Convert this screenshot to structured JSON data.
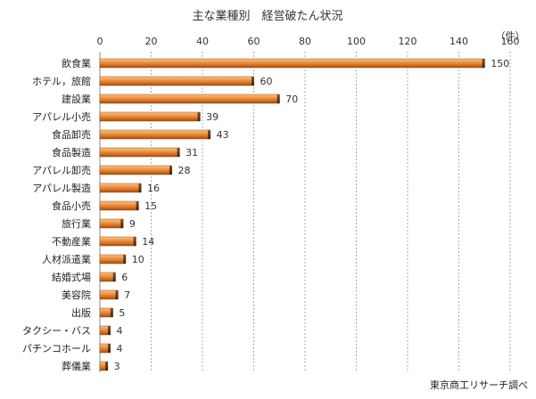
{
  "chart_data": {
    "type": "bar",
    "orientation": "horizontal",
    "title": "主な業種別　経営破たん状況",
    "unit_label": "（件）",
    "source": "東京商工リサーチ調べ",
    "xlim": [
      0,
      160
    ],
    "x_ticks": [
      0,
      20,
      40,
      60,
      80,
      100,
      120,
      140,
      160
    ],
    "grid": true,
    "bar_color": "#E07B2C",
    "categories": [
      "飲食業",
      "ホテル，旅館",
      "建設業",
      "アパレル小売",
      "食品卸売",
      "食品製造",
      "アパレル卸売",
      "アパレル製造",
      "食品小売",
      "旅行業",
      "不動産業",
      "人材派遣業",
      "結婚式場",
      "美容院",
      "出版",
      "タクシー・バス",
      "パチンコホール",
      "葬儀業"
    ],
    "values": [
      150,
      60,
      70,
      39,
      43,
      31,
      28,
      16,
      15,
      9,
      14,
      10,
      6,
      7,
      5,
      4,
      4,
      3
    ]
  }
}
